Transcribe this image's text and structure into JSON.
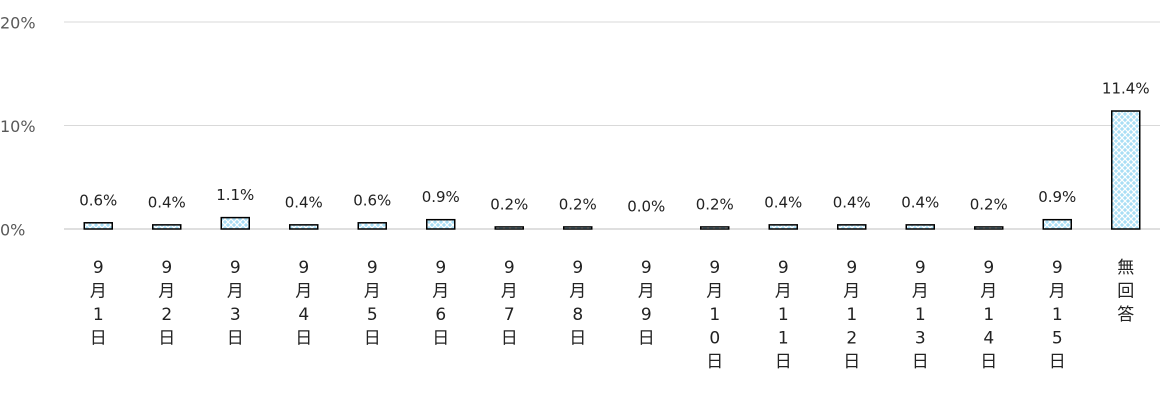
{
  "chart_data": {
    "type": "bar",
    "categories": [
      "9月1日",
      "9月2日",
      "9月3日",
      "9月4日",
      "9月5日",
      "9月6日",
      "9月7日",
      "9月8日",
      "9月9日",
      "9月10日",
      "9月11日",
      "9月12日",
      "9月13日",
      "9月14日",
      "9月15日",
      "無回答"
    ],
    "values": [
      0.6,
      0.4,
      1.1,
      0.4,
      0.6,
      0.9,
      0.2,
      0.2,
      0.0,
      0.2,
      0.4,
      0.4,
      0.4,
      0.2,
      0.9,
      11.4
    ],
    "value_labels": [
      "0.6%",
      "0.4%",
      "1.1%",
      "0.4%",
      "0.6%",
      "0.9%",
      "0.2%",
      "0.2%",
      "0.0%",
      "0.2%",
      "0.4%",
      "0.4%",
      "0.4%",
      "0.2%",
      "0.9%",
      "11.4%"
    ],
    "color": "#a9def5",
    "ylim": [
      0,
      20
    ],
    "yticks": [
      {
        "value": 0,
        "label": "0%"
      },
      {
        "value": 10,
        "label": "10%"
      },
      {
        "value": 20,
        "label": "20%"
      }
    ],
    "grid": true
  }
}
